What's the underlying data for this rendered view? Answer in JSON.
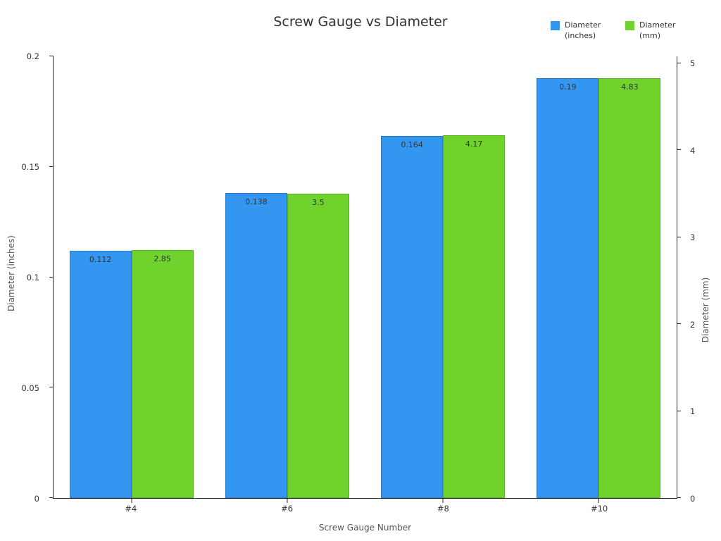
{
  "chart_data": {
    "type": "bar",
    "title": "Screw Gauge vs Diameter",
    "xlabel": "Screw Gauge Number",
    "ylabel_left": "Diameter (inches)",
    "ylabel_right": "Diameter (mm)",
    "categories": [
      "#4",
      "#6",
      "#8",
      "#10"
    ],
    "series": [
      {
        "name": "Diameter (inches)",
        "axis": "left",
        "color": "#3397F2",
        "values": [
          0.112,
          0.138,
          0.164,
          0.19
        ],
        "labels": [
          "0.112",
          "0.138",
          "0.164",
          "0.19"
        ]
      },
      {
        "name": "Diameter (mm)",
        "axis": "right",
        "color": "#6FD32C",
        "values": [
          2.85,
          3.5,
          4.17,
          4.83
        ],
        "labels": [
          "2.85",
          "3.5",
          "4.17",
          "4.83"
        ]
      }
    ],
    "left_axis": {
      "min": 0,
      "max": 0.2,
      "scale_max": 0.2,
      "ticks": [
        "0",
        "0.05",
        "0.1",
        "0.15",
        "0.2"
      ],
      "tick_values": [
        0,
        0.05,
        0.1,
        0.15,
        0.2
      ]
    },
    "right_axis": {
      "min": 0,
      "max": 5,
      "scale_max": 5.08,
      "ticks": [
        "0",
        "1",
        "2",
        "3",
        "4",
        "5"
      ],
      "tick_values": [
        0,
        1,
        2,
        3,
        4,
        5
      ]
    },
    "legend_position": "top-right",
    "grid": false,
    "background": "#ffffff"
  }
}
